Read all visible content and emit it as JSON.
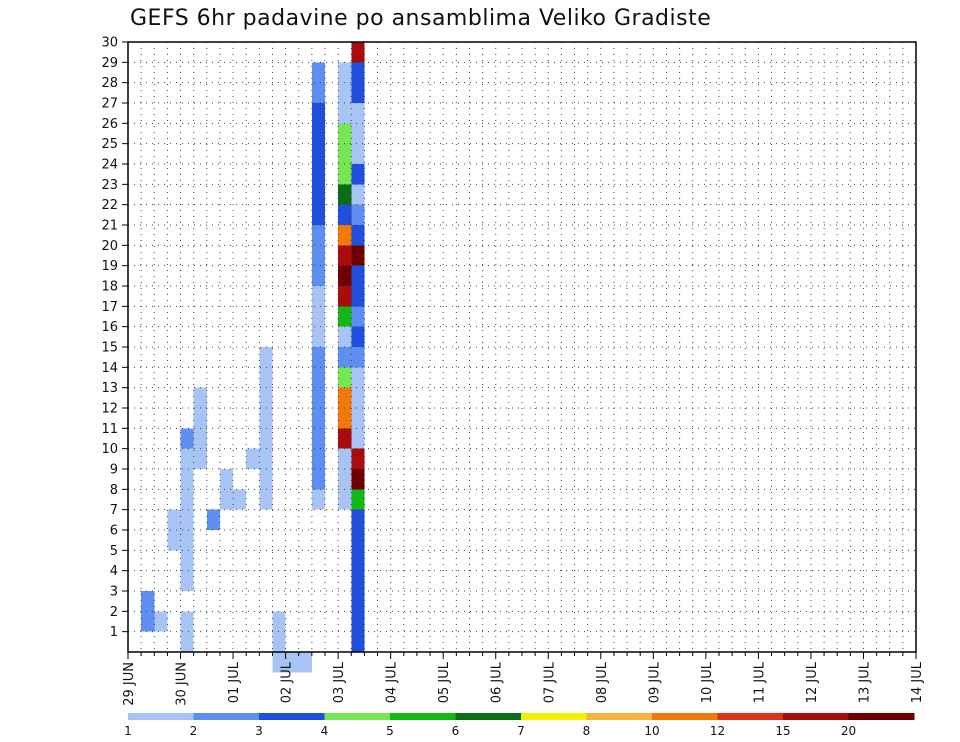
{
  "title": "GEFS 6hr padavine po ansamblima Veliko Gradiste",
  "chart_data": {
    "type": "heatmap",
    "title": "GEFS 6hr padavine po ansamblima Veliko Gradiste",
    "xlabel": "",
    "ylabel": "",
    "x_tick_labels": [
      "29 JUN",
      "30 JUN",
      "01 JUL",
      "02 JUL",
      "03 JUL",
      "04 JUL",
      "05 JUL",
      "06 JUL",
      "07 JUL",
      "08 JUL",
      "09 JUL",
      "10 JUL",
      "11 JUL",
      "12 JUL",
      "13 JUL",
      "14 JUL"
    ],
    "y_tick_labels": [
      "1",
      "2",
      "3",
      "4",
      "5",
      "6",
      "7",
      "8",
      "9",
      "10",
      "11",
      "12",
      "13",
      "14",
      "15",
      "16",
      "17",
      "18",
      "19",
      "20",
      "21",
      "22",
      "23",
      "24",
      "25",
      "26",
      "27",
      "28",
      "29",
      "30"
    ],
    "ylim": [
      0,
      30
    ],
    "x_steps": 60,
    "grid": true,
    "colorbar": {
      "labels": [
        "1",
        "2",
        "3",
        "4",
        "5",
        "6",
        "7",
        "8",
        "10",
        "12",
        "15",
        "20"
      ],
      "colors": [
        "#a8c4f5",
        "#5e8ef0",
        "#1f4fdc",
        "#76e655",
        "#14b814",
        "#0a6e16",
        "#f2f200",
        "#f5b43c",
        "#f2780a",
        "#e0321a",
        "#a80c0c",
        "#6e0000"
      ]
    },
    "cells": [
      [
        1,
        2,
        1
      ],
      [
        1,
        2,
        2
      ],
      [
        1,
        3,
        1
      ],
      [
        1,
        3,
        2
      ],
      [
        2,
        2,
        1
      ],
      [
        3,
        6,
        1
      ],
      [
        3,
        7,
        1
      ],
      [
        4,
        1,
        1
      ],
      [
        4,
        2,
        1
      ],
      [
        4,
        4,
        1
      ],
      [
        4,
        5,
        1
      ],
      [
        4,
        6,
        1
      ],
      [
        4,
        7,
        1
      ],
      [
        4,
        8,
        1
      ],
      [
        4,
        9,
        1
      ],
      [
        4,
        10,
        1
      ],
      [
        4,
        11,
        2
      ],
      [
        5,
        10,
        1
      ],
      [
        5,
        11,
        1
      ],
      [
        5,
        12,
        1
      ],
      [
        5,
        13,
        1
      ],
      [
        6,
        7,
        2
      ],
      [
        7,
        8,
        1
      ],
      [
        7,
        9,
        1
      ],
      [
        8,
        8,
        1
      ],
      [
        9,
        10,
        1
      ],
      [
        10,
        8,
        1
      ],
      [
        10,
        9,
        1
      ],
      [
        10,
        10,
        1
      ],
      [
        10,
        11,
        1
      ],
      [
        10,
        12,
        1
      ],
      [
        10,
        13,
        1
      ],
      [
        10,
        14,
        1
      ],
      [
        10,
        15,
        1
      ],
      [
        11,
        0,
        1
      ],
      [
        11,
        1,
        1
      ],
      [
        11,
        2,
        1
      ],
      [
        12,
        0,
        1
      ],
      [
        13,
        0,
        1
      ],
      [
        14,
        8,
        1
      ],
      [
        14,
        9,
        2
      ],
      [
        14,
        10,
        2
      ],
      [
        14,
        11,
        2
      ],
      [
        14,
        12,
        2
      ],
      [
        14,
        13,
        2
      ],
      [
        14,
        14,
        2
      ],
      [
        14,
        15,
        2
      ],
      [
        14,
        16,
        1
      ],
      [
        14,
        17,
        1
      ],
      [
        14,
        18,
        1
      ],
      [
        14,
        19,
        2
      ],
      [
        14,
        20,
        2
      ],
      [
        14,
        21,
        2
      ],
      [
        14,
        22,
        3
      ],
      [
        14,
        23,
        3
      ],
      [
        14,
        24,
        3
      ],
      [
        14,
        25,
        3
      ],
      [
        14,
        26,
        3
      ],
      [
        14,
        27,
        3
      ],
      [
        14,
        28,
        2
      ],
      [
        14,
        29,
        2
      ],
      [
        16,
        8,
        1
      ],
      [
        16,
        9,
        1
      ],
      [
        16,
        10,
        1
      ],
      [
        16,
        11,
        11
      ],
      [
        16,
        12,
        9
      ],
      [
        16,
        13,
        9
      ],
      [
        16,
        14,
        4
      ],
      [
        16,
        15,
        2
      ],
      [
        16,
        16,
        1
      ],
      [
        16,
        17,
        5
      ],
      [
        16,
        18,
        11
      ],
      [
        16,
        19,
        12
      ],
      [
        16,
        20,
        11
      ],
      [
        16,
        21,
        9
      ],
      [
        16,
        22,
        3
      ],
      [
        16,
        23,
        6
      ],
      [
        16,
        24,
        4
      ],
      [
        16,
        25,
        4
      ],
      [
        16,
        26,
        4
      ],
      [
        16,
        27,
        1
      ],
      [
        16,
        28,
        1
      ],
      [
        16,
        29,
        1
      ],
      [
        17,
        1,
        3
      ],
      [
        17,
        2,
        3
      ],
      [
        17,
        3,
        3
      ],
      [
        17,
        4,
        3
      ],
      [
        17,
        5,
        3
      ],
      [
        17,
        6,
        3
      ],
      [
        17,
        7,
        3
      ],
      [
        17,
        8,
        5
      ],
      [
        17,
        9,
        12
      ],
      [
        17,
        10,
        11
      ],
      [
        17,
        11,
        1
      ],
      [
        17,
        12,
        1
      ],
      [
        17,
        13,
        1
      ],
      [
        17,
        14,
        1
      ],
      [
        17,
        15,
        2
      ],
      [
        17,
        16,
        3
      ],
      [
        17,
        17,
        2
      ],
      [
        17,
        18,
        3
      ],
      [
        17,
        19,
        3
      ],
      [
        17,
        20,
        12
      ],
      [
        17,
        21,
        3
      ],
      [
        17,
        22,
        2
      ],
      [
        17,
        23,
        1
      ],
      [
        17,
        24,
        3
      ],
      [
        17,
        25,
        1
      ],
      [
        17,
        26,
        1
      ],
      [
        17,
        27,
        1
      ],
      [
        17,
        28,
        3
      ],
      [
        17,
        29,
        3
      ],
      [
        17,
        30,
        11
      ]
    ]
  }
}
